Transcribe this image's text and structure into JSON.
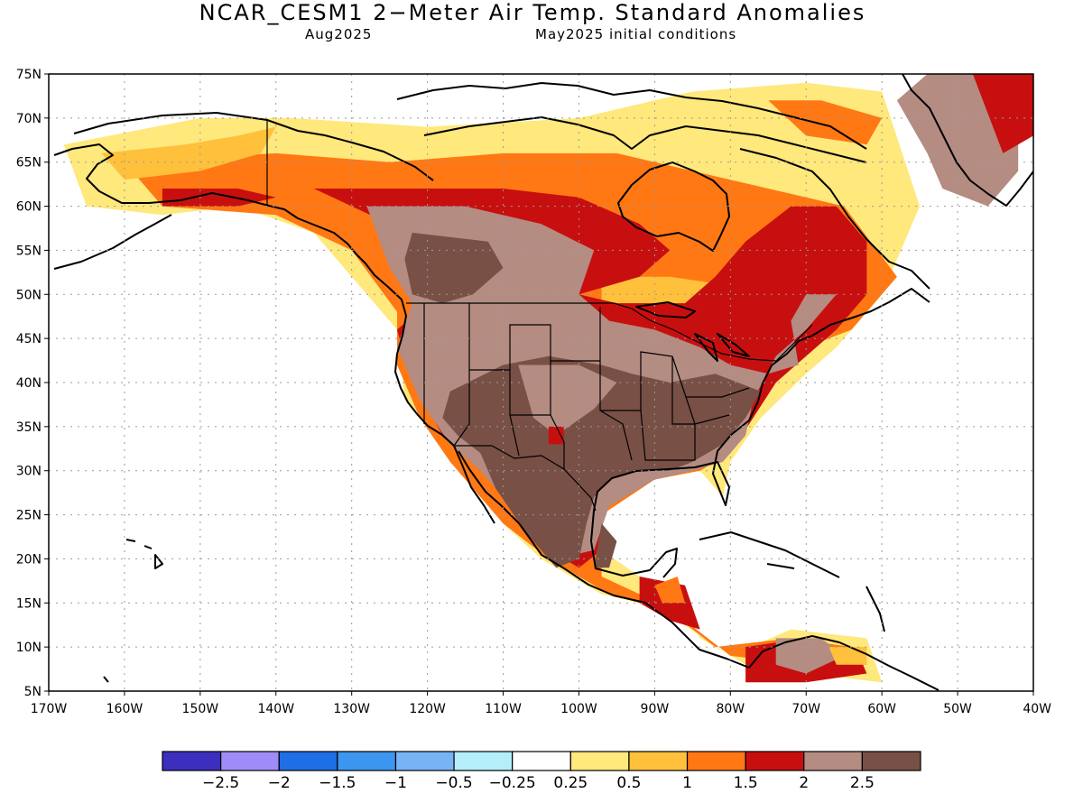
{
  "header": {
    "title": "NCAR_CESM1 2−Meter Air Temp. Standard Anomalies",
    "valid_month": "Aug2025",
    "initial_conditions": "May2025 initial conditions"
  },
  "map": {
    "projection": "latitude-longitude",
    "lon_range": [
      -170,
      -40
    ],
    "lat_range": [
      5,
      75
    ],
    "lat_tick_labels": [
      "5N",
      "10N",
      "15N",
      "20N",
      "25N",
      "30N",
      "35N",
      "40N",
      "45N",
      "50N",
      "55N",
      "60N",
      "65N",
      "70N",
      "75N"
    ],
    "lon_tick_labels": [
      "170W",
      "160W",
      "150W",
      "140W",
      "130W",
      "120W",
      "110W",
      "100W",
      "90W",
      "80W",
      "70W",
      "60W",
      "50W",
      "40W"
    ],
    "grid": "dotted"
  },
  "colorbar": {
    "colors": [
      "#3c2fbe",
      "#a08cf8",
      "#1e6ee6",
      "#3c96f0",
      "#78b4f5",
      "#b4eefa",
      "#ffffff",
      "#ffe87c",
      "#ffc03c",
      "#ff7814",
      "#c80f0f",
      "#b48c82",
      "#785046"
    ],
    "labels": [
      "−2.5",
      "−2",
      "−1.5",
      "−1",
      "−0.5",
      "−0.25",
      "0.25",
      "0.5",
      "1",
      "1.5",
      "2",
      "2.5"
    ]
  },
  "anomaly_regions": [
    {
      "name": "alaska-interior",
      "level": "0.5"
    },
    {
      "name": "western-canada",
      "level": "1.5"
    },
    {
      "name": "northwest-canada",
      "level": "2.5"
    },
    {
      "name": "central-canada",
      "level": "1"
    },
    {
      "name": "quebec",
      "level": "1.5"
    },
    {
      "name": "greenland",
      "level": "2"
    },
    {
      "name": "southwest-us",
      "level": "2.5"
    },
    {
      "name": "great-plains",
      "level": "2"
    },
    {
      "name": "southeast-us",
      "level": "2.5"
    },
    {
      "name": "mexico",
      "level": "2.5"
    },
    {
      "name": "central-america",
      "level": "1.5"
    },
    {
      "name": "northern-south-america",
      "level": "2"
    }
  ]
}
